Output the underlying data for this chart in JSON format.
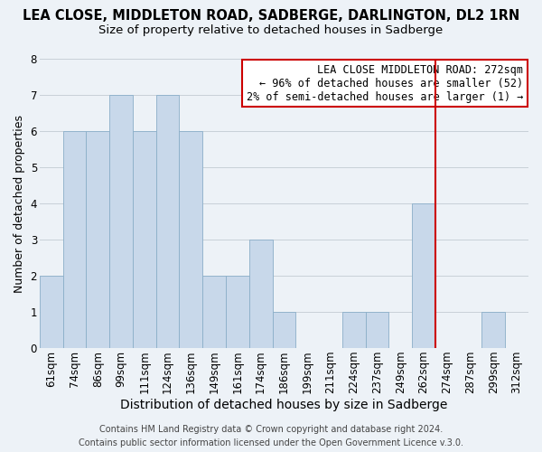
{
  "title": "LEA CLOSE, MIDDLETON ROAD, SADBERGE, DARLINGTON, DL2 1RN",
  "subtitle": "Size of property relative to detached houses in Sadberge",
  "xlabel": "Distribution of detached houses by size in Sadberge",
  "ylabel": "Number of detached properties",
  "bar_labels": [
    "61sqm",
    "74sqm",
    "86sqm",
    "99sqm",
    "111sqm",
    "124sqm",
    "136sqm",
    "149sqm",
    "161sqm",
    "174sqm",
    "186sqm",
    "199sqm",
    "211sqm",
    "224sqm",
    "237sqm",
    "249sqm",
    "262sqm",
    "274sqm",
    "287sqm",
    "299sqm",
    "312sqm"
  ],
  "bar_values": [
    2,
    6,
    6,
    7,
    6,
    7,
    6,
    2,
    2,
    3,
    1,
    0,
    0,
    1,
    1,
    0,
    4,
    0,
    0,
    1,
    0
  ],
  "bar_color": "#c8d8ea",
  "bar_edge_color": "#8aaec8",
  "ylim": [
    0,
    8
  ],
  "yticks": [
    0,
    1,
    2,
    3,
    4,
    5,
    6,
    7,
    8
  ],
  "grid_color": "#c8d0d8",
  "background_color": "#edf2f7",
  "vline_color": "#cc0000",
  "annotation_title": "LEA CLOSE MIDDLETON ROAD: 272sqm",
  "annotation_line1": "← 96% of detached houses are smaller (52)",
  "annotation_line2": "2% of semi-detached houses are larger (1) →",
  "annotation_box_color": "#ffffff",
  "annotation_box_edge": "#cc0000",
  "footer1": "Contains HM Land Registry data © Crown copyright and database right 2024.",
  "footer2": "Contains public sector information licensed under the Open Government Licence v.3.0.",
  "title_fontsize": 10.5,
  "subtitle_fontsize": 9.5,
  "xlabel_fontsize": 10,
  "ylabel_fontsize": 9,
  "tick_fontsize": 8.5,
  "annotation_fontsize": 8.5,
  "footer_fontsize": 7
}
